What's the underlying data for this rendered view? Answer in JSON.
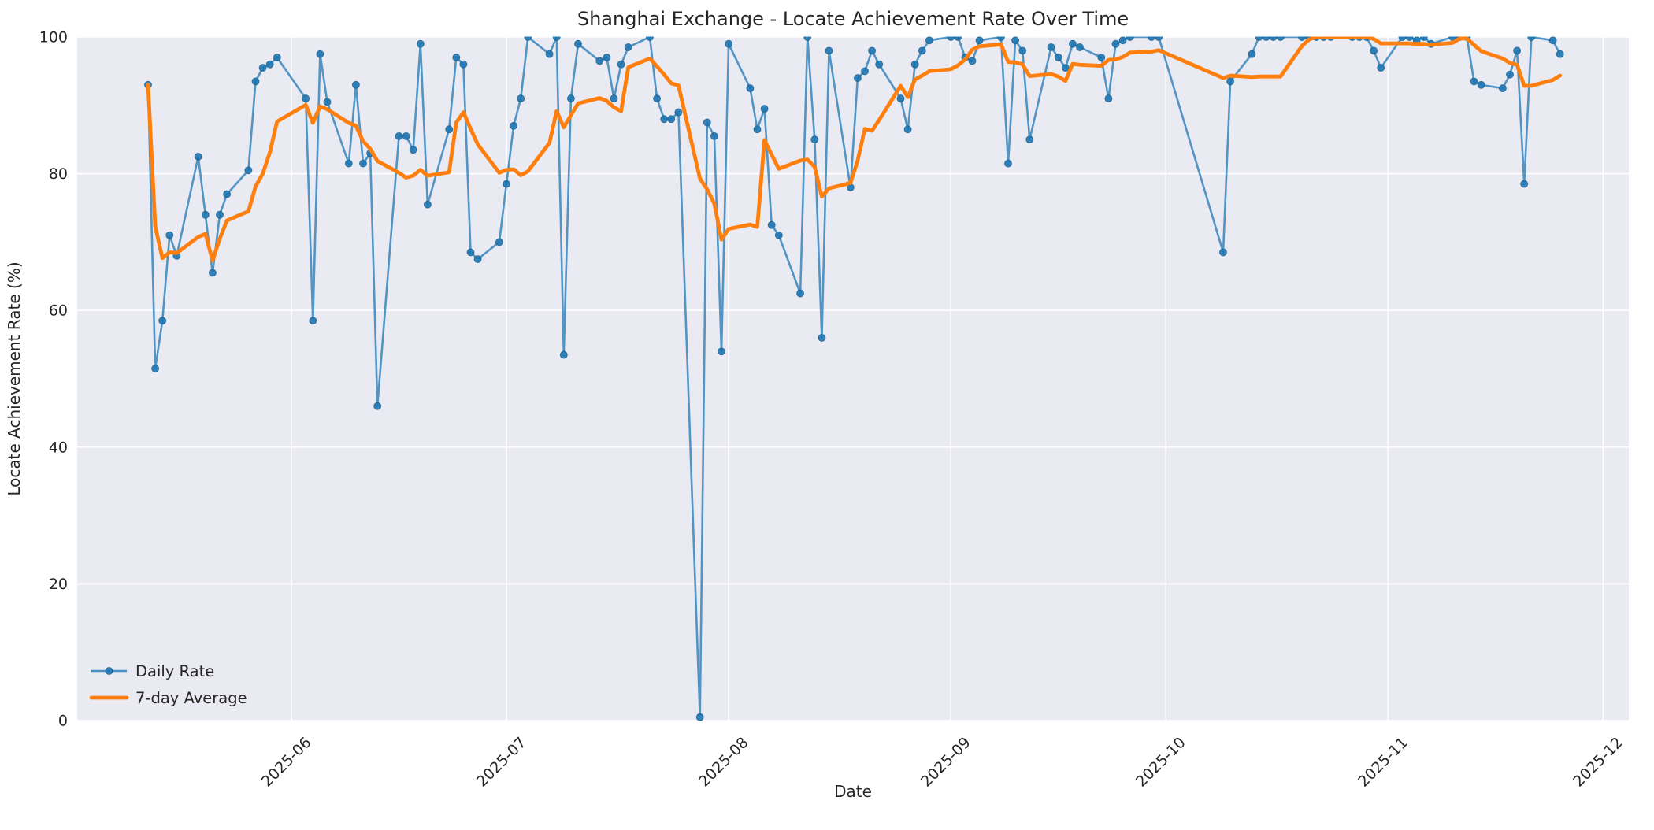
{
  "figure": {
    "background": "#ffffff",
    "axes_background": "#eaeaf2",
    "grid_color": "#ffffff",
    "text_color": "#262626"
  },
  "chart_data": {
    "type": "line",
    "title": "Shanghai Exchange - Locate Achievement Rate Over Time",
    "xlabel": "Date",
    "ylabel": "Locate Achievement Rate (%)",
    "ylim": [
      0,
      100
    ],
    "grid": true,
    "legend_position": "lower left",
    "x_tick_labels": [
      "2025-06",
      "2025-07",
      "2025-08",
      "2025-09",
      "2025-10",
      "2025-11",
      "2025-12"
    ],
    "y_tick_labels": [
      "0",
      "20",
      "40",
      "60",
      "80",
      "100"
    ],
    "y_tick_values": [
      0,
      20,
      40,
      60,
      80,
      100
    ],
    "dates": [
      "2025-05-12",
      "2025-05-13",
      "2025-05-14",
      "2025-05-15",
      "2025-05-16",
      "2025-05-19",
      "2025-05-20",
      "2025-05-21",
      "2025-05-22",
      "2025-05-23",
      "2025-05-26",
      "2025-05-27",
      "2025-05-28",
      "2025-05-29",
      "2025-05-30",
      "2025-06-03",
      "2025-06-04",
      "2025-06-05",
      "2025-06-06",
      "2025-06-09",
      "2025-06-10",
      "2025-06-11",
      "2025-06-12",
      "2025-06-13",
      "2025-06-16",
      "2025-06-17",
      "2025-06-18",
      "2025-06-19",
      "2025-06-20",
      "2025-06-23",
      "2025-06-24",
      "2025-06-25",
      "2025-06-26",
      "2025-06-27",
      "2025-06-30",
      "2025-07-01",
      "2025-07-02",
      "2025-07-03",
      "2025-07-04",
      "2025-07-07",
      "2025-07-08",
      "2025-07-09",
      "2025-07-10",
      "2025-07-11",
      "2025-07-14",
      "2025-07-15",
      "2025-07-16",
      "2025-07-17",
      "2025-07-18",
      "2025-07-21",
      "2025-07-22",
      "2025-07-23",
      "2025-07-24",
      "2025-07-25",
      "2025-07-28",
      "2025-07-29",
      "2025-07-30",
      "2025-07-31",
      "2025-08-01",
      "2025-08-04",
      "2025-08-05",
      "2025-08-06",
      "2025-08-07",
      "2025-08-08",
      "2025-08-11",
      "2025-08-12",
      "2025-08-13",
      "2025-08-14",
      "2025-08-15",
      "2025-08-18",
      "2025-08-19",
      "2025-08-20",
      "2025-08-21",
      "2025-08-22",
      "2025-08-25",
      "2025-08-26",
      "2025-08-27",
      "2025-08-28",
      "2025-08-29",
      "2025-09-01",
      "2025-09-02",
      "2025-09-03",
      "2025-09-04",
      "2025-09-05",
      "2025-09-08",
      "2025-09-09",
      "2025-09-10",
      "2025-09-11",
      "2025-09-12",
      "2025-09-15",
      "2025-09-16",
      "2025-09-17",
      "2025-09-18",
      "2025-09-19",
      "2025-09-22",
      "2025-09-23",
      "2025-09-24",
      "2025-09-25",
      "2025-09-26",
      "2025-09-29",
      "2025-09-30",
      "2025-10-09",
      "2025-10-10",
      "2025-10-13",
      "2025-10-14",
      "2025-10-15",
      "2025-10-16",
      "2025-10-17",
      "2025-10-20",
      "2025-10-21",
      "2025-10-22",
      "2025-10-23",
      "2025-10-24",
      "2025-10-27",
      "2025-10-28",
      "2025-10-29",
      "2025-10-30",
      "2025-10-31",
      "2025-11-03",
      "2025-11-04",
      "2025-11-05",
      "2025-11-06",
      "2025-11-07",
      "2025-11-10",
      "2025-11-11",
      "2025-11-12",
      "2025-11-13",
      "2025-11-14",
      "2025-11-17",
      "2025-11-18",
      "2025-11-19",
      "2025-11-20",
      "2025-11-21",
      "2025-11-24",
      "2025-11-25"
    ],
    "series": [
      {
        "name": "Daily Rate",
        "color": "#1f77b4",
        "marker": "o",
        "values": [
          93,
          51.5,
          58.5,
          71,
          68,
          82.5,
          74,
          65.5,
          74,
          77,
          80.5,
          93.5,
          95.5,
          96,
          97,
          91,
          58.5,
          97.5,
          90.5,
          81.5,
          93,
          81.5,
          83,
          46,
          85.5,
          85.5,
          83.5,
          99,
          75.5,
          86.5,
          97,
          96,
          68.5,
          67.5,
          70,
          78.5,
          87,
          91,
          100,
          97.5,
          100,
          53.5,
          91,
          99,
          96.5,
          97,
          91,
          96,
          98.5,
          100,
          91,
          88,
          88,
          89,
          0.5,
          87.5,
          85.5,
          54,
          99,
          92.5,
          86.5,
          89.5,
          72.5,
          71,
          62.5,
          100,
          85,
          56,
          98,
          78,
          94,
          95,
          98,
          96,
          91,
          86.5,
          96,
          98,
          99.5,
          100,
          100,
          97,
          96.5,
          99.5,
          100,
          81.5,
          99.5,
          98,
          85,
          98.5,
          97,
          95.5,
          99,
          98.5,
          97,
          91,
          99,
          99.5,
          100,
          100,
          100,
          68.5,
          93.5,
          97.5,
          100,
          100,
          100,
          100,
          100,
          100,
          100,
          100,
          100,
          100,
          100,
          100,
          98,
          95.5,
          100,
          100,
          99.5,
          100,
          99,
          100,
          100,
          100,
          93.5,
          93,
          92.5,
          94.5,
          98,
          78.5,
          100,
          99.5,
          97.5
        ]
      },
      {
        "name": "7-day Average",
        "color": "#ff7f0e",
        "derived_from": "Daily Rate",
        "method": "rolling_mean",
        "window": 7,
        "min_periods": 1
      }
    ]
  }
}
